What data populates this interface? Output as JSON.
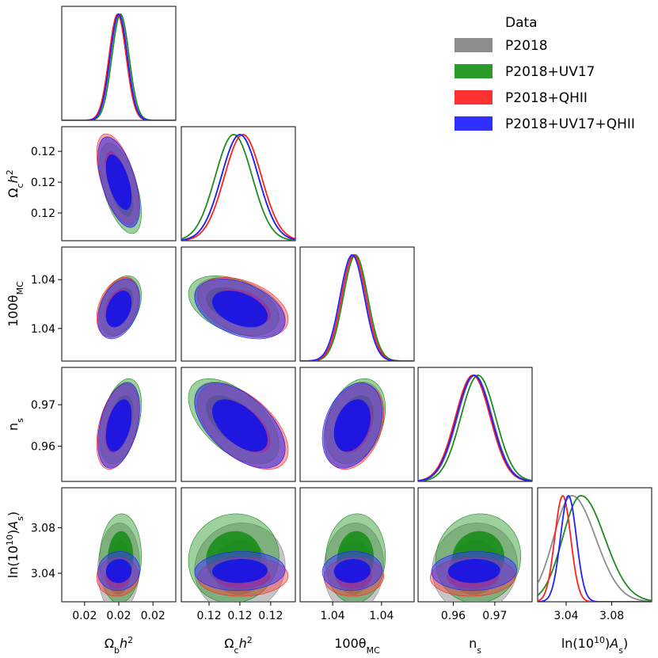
{
  "chart_data": {
    "type": "corner",
    "legend": {
      "title": "Data",
      "position": "top-right",
      "entries": [
        {
          "label": "P2018",
          "color": "#8c8c8c"
        },
        {
          "label": "P2018+UV17",
          "color": "#1f8a1f"
        },
        {
          "label": "P2018+QHII",
          "color": "#ff2020"
        },
        {
          "label": "P2018+UV17+QHII",
          "color": "#2020ff"
        }
      ]
    },
    "parameters": [
      {
        "key": "ombh2",
        "label_base": "Ω",
        "label_sub": "b",
        "label_tail": "h",
        "label_sup": "2",
        "ticks": [
          {
            "value": 0.0218,
            "label": "0.02"
          },
          {
            "value": 0.0224,
            "label": "0.02"
          },
          {
            "value": 0.023,
            "label": "0.02"
          }
        ]
      },
      {
        "key": "omch2",
        "label_base": "Ω",
        "label_sub": "c",
        "label_tail": "h",
        "label_sup": "2",
        "ticks": [
          {
            "value": 0.118,
            "label": "0.12"
          },
          {
            "value": 0.12,
            "label": "0.12"
          },
          {
            "value": 0.122,
            "label": "0.12"
          }
        ]
      },
      {
        "key": "theta",
        "label_base": "100θ",
        "label_sub": "MC",
        "label_tail": "",
        "label_sup": "",
        "ticks": [
          {
            "value": 1.0404,
            "label": "1.04"
          },
          {
            "value": 1.0416,
            "label": "1.04"
          }
        ]
      },
      {
        "key": "ns",
        "label_base": "n",
        "label_sub": "s",
        "label_tail": "",
        "label_sup": "",
        "ticks": [
          {
            "value": 0.96,
            "label": "0.96"
          },
          {
            "value": 0.97,
            "label": "0.97"
          }
        ]
      },
      {
        "key": "logA",
        "label_base": "ln(10",
        "label_sub": "",
        "label_tail": "A",
        "label_sup": "10",
        "label_tail_sub": "s",
        "label_close": ")",
        "ticks": [
          {
            "value": 3.04,
            "label": "3.04"
          },
          {
            "value": 3.08,
            "label": "3.08"
          }
        ]
      }
    ],
    "series_1d": {
      "P2018": [
        {
          "mean": 0.0224,
          "sd": 0.00015
        },
        {
          "mean": 0.12,
          "sd": 0.0012
        },
        {
          "mean": 1.04092,
          "sd": 0.0003
        },
        {
          "mean": 0.9652,
          "sd": 0.0042
        },
        {
          "mean": 3.045,
          "sd": 0.016
        }
      ],
      "P2018+UV17": [
        {
          "mean": 0.02243,
          "sd": 0.00015
        },
        {
          "mean": 0.1196,
          "sd": 0.0012
        },
        {
          "mean": 1.04096,
          "sd": 0.0003
        },
        {
          "mean": 0.966,
          "sd": 0.0042
        },
        {
          "mean": 3.053,
          "sd": 0.016
        }
      ],
      "P2018+QHII": [
        {
          "mean": 0.02238,
          "sd": 0.00015
        },
        {
          "mean": 0.1202,
          "sd": 0.0012
        },
        {
          "mean": 1.04092,
          "sd": 0.0003
        },
        {
          "mean": 0.9647,
          "sd": 0.0042
        },
        {
          "mean": 3.037,
          "sd": 0.007
        }
      ],
      "P2018+UV17+QHII": [
        {
          "mean": 0.0224,
          "sd": 0.00015
        },
        {
          "mean": 0.12,
          "sd": 0.0012
        },
        {
          "mean": 1.04088,
          "sd": 0.0003
        },
        {
          "mean": 0.965,
          "sd": 0.0042
        },
        {
          "mean": 3.042,
          "sd": 0.007
        }
      ]
    },
    "axis_ranges": [
      [
        0.0214,
        0.0234
      ],
      [
        0.1162,
        0.1236
      ],
      [
        1.0396,
        1.0424
      ],
      [
        0.9515,
        0.979
      ],
      [
        3.015,
        3.115
      ]
    ]
  }
}
